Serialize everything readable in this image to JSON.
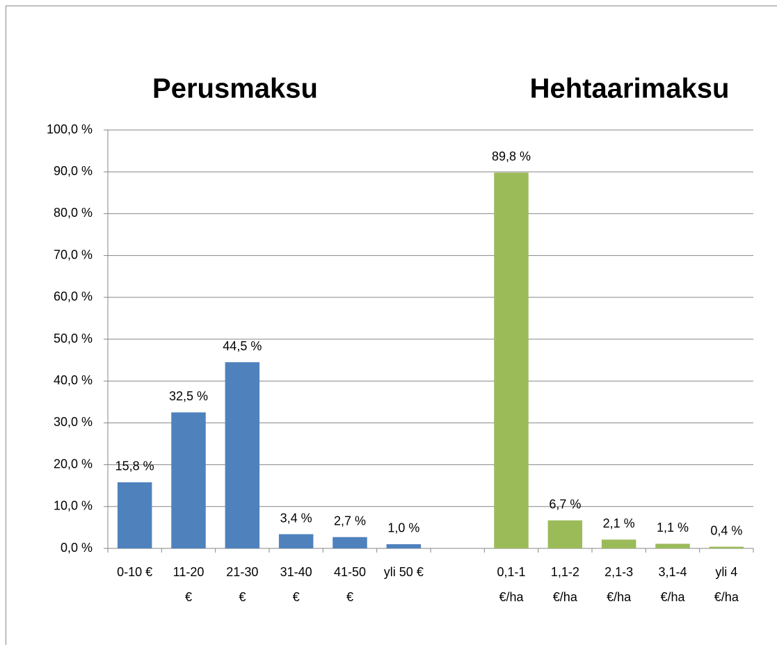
{
  "chart_data": {
    "type": "bar",
    "annotations": [
      "Perusmaksu",
      "Hehtaarimaksu"
    ],
    "categories": [
      "0-10 €",
      "11-20\n€",
      "21-30\n€",
      "31-40\n€",
      "41-50\n€",
      "yli 50 €",
      null,
      "0,1-1\n€/ha",
      "1,1-2\n€/ha",
      "2,1-3\n€/ha",
      "3,1-4\n€/ha",
      "yli 4\n€/ha"
    ],
    "values": [
      15.8,
      32.5,
      44.5,
      3.4,
      2.7,
      1.0,
      null,
      89.8,
      6.7,
      2.1,
      1.1,
      0.4
    ],
    "value_labels": [
      "15,8 %",
      "32,5 %",
      "44,5 %",
      "3,4 %",
      "2,7 %",
      "1,0 %",
      null,
      "89,8 %",
      "6,7 %",
      "2,1 %",
      "1,1 %",
      "0,4 %"
    ],
    "colors": [
      "#4f81bd",
      "#4f81bd",
      "#4f81bd",
      "#4f81bd",
      "#4f81bd",
      "#4f81bd",
      null,
      "#9bbb59",
      "#9bbb59",
      "#9bbb59",
      "#9bbb59",
      "#9bbb59"
    ],
    "ylim": [
      0,
      100
    ],
    "yticks": [
      {
        "value": 0,
        "label": "0,0 %"
      },
      {
        "value": 10,
        "label": "10,0 %"
      },
      {
        "value": 20,
        "label": "20,0 %"
      },
      {
        "value": 30,
        "label": "30,0 %"
      },
      {
        "value": 40,
        "label": "40,0 %"
      },
      {
        "value": 50,
        "label": "50,0 %"
      },
      {
        "value": 60,
        "label": "60,0 %"
      },
      {
        "value": 70,
        "label": "70,0 %"
      },
      {
        "value": 80,
        "label": "80,0 %"
      },
      {
        "value": 90,
        "label": "90,0 %"
      },
      {
        "value": 100,
        "label": "100,0 %"
      }
    ],
    "grid": true
  }
}
